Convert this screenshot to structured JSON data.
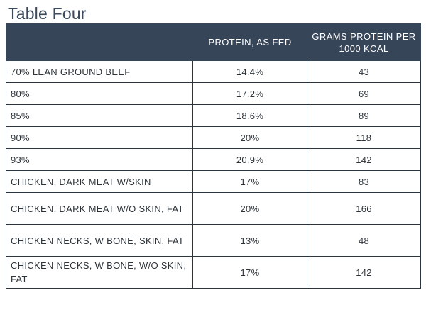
{
  "title": "Table Four",
  "table": {
    "headers": [
      "",
      "PROTEIN, AS FED",
      "GRAMS PROTEIN PER 1000 KCAL"
    ],
    "rows": [
      {
        "name": "70% LEAN GROUND BEEF",
        "protein": "14.4%",
        "grams": "43"
      },
      {
        "name": "80%",
        "protein": "17.2%",
        "grams": "69"
      },
      {
        "name": "85%",
        "protein": "18.6%",
        "grams": "89"
      },
      {
        "name": "90%",
        "protein": "20%",
        "grams": "118"
      },
      {
        "name": "93%",
        "protein": "20.9%",
        "grams": "142"
      },
      {
        "name": "CHICKEN, DARK MEAT W/SKIN",
        "protein": "17%",
        "grams": "83"
      },
      {
        "name": "CHICKEN, DARK MEAT W/O SKIN, FAT",
        "protein": "20%",
        "grams": "166"
      },
      {
        "name": "CHICKEN NECKS, W BONE, SKIN, FAT",
        "protein": "13%",
        "grams": "48"
      },
      {
        "name": "CHICKEN NECKS, W BONE, W/O SKIN, FAT",
        "protein": "17%",
        "grams": "142"
      }
    ]
  }
}
